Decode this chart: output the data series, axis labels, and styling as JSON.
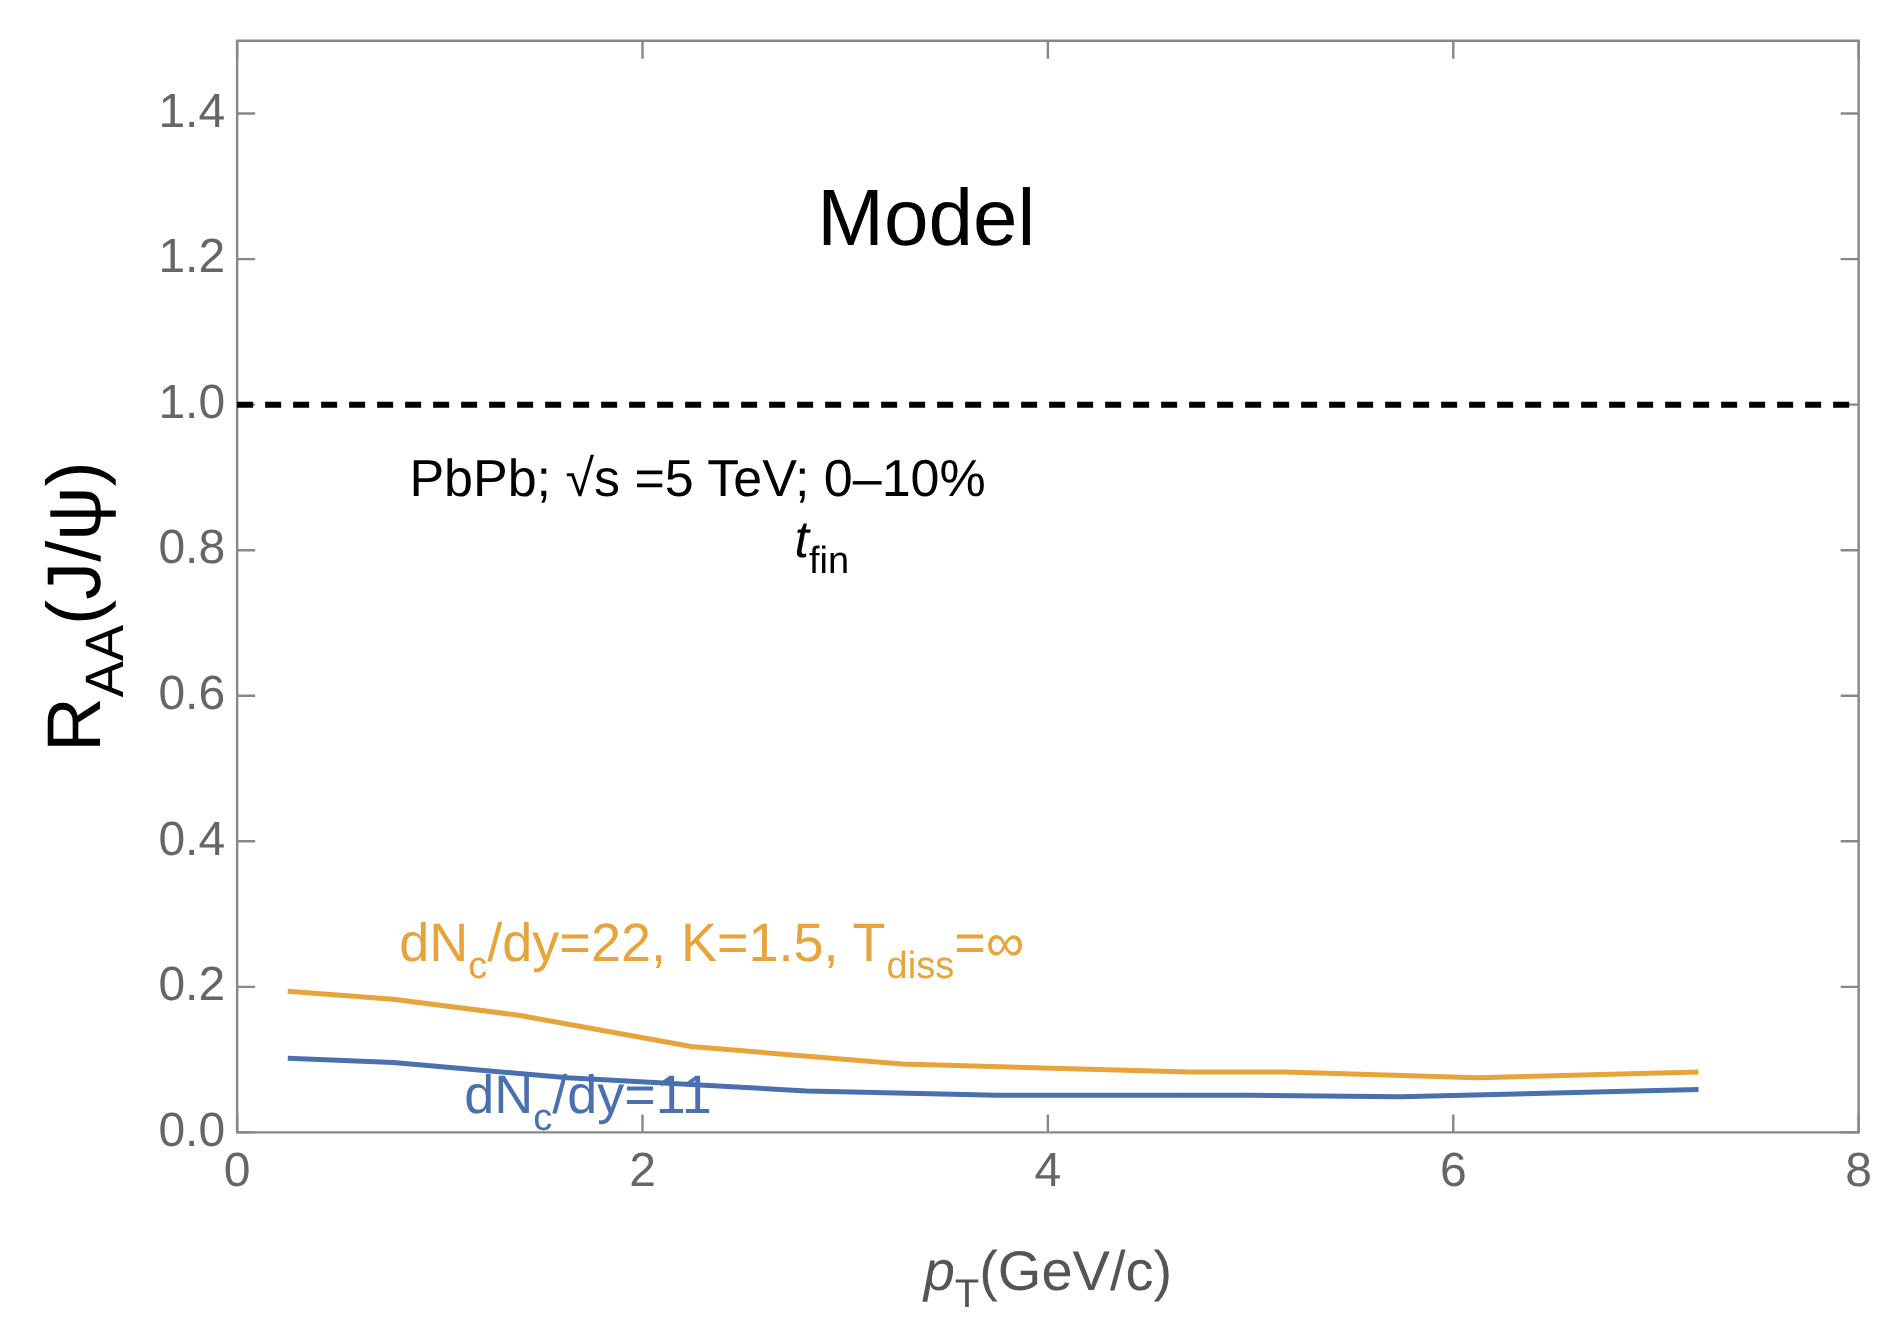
{
  "chart_data": {
    "type": "line",
    "title": "Model",
    "xlabel": "p$_{T}$(GeV/c)",
    "ylabel": "R$_{AA}$(J/ψ)",
    "annotations": [
      "PbPb; √s =5 TeV; 0–10%",
      "t$_{fin}$"
    ],
    "series": [
      {
        "name": "dN$_{c}$/dy=22, K=1.5, T$_{diss}$=∞",
        "color": "#e8a33a",
        "x": [
          0.25,
          0.77,
          1.39,
          2.24,
          3.28,
          4.7,
          5.17,
          6.12,
          7.21
        ],
        "values": [
          0.194,
          0.183,
          0.161,
          0.118,
          0.094,
          0.083,
          0.083,
          0.075,
          0.083
        ]
      },
      {
        "name": "dN$_{c}$/dy=11",
        "color": "#4a70b0",
        "x": [
          0.25,
          0.77,
          1.63,
          2.81,
          3.75,
          5.0,
          5.74,
          7.21
        ],
        "values": [
          0.102,
          0.096,
          0.075,
          0.057,
          0.051,
          0.051,
          0.049,
          0.059
        ]
      }
    ],
    "ref_lines": [
      {
        "axis": "y",
        "value": 1.0,
        "color": "#000000",
        "line_style": "dashed"
      }
    ],
    "xlim": [
      0,
      8
    ],
    "xticks": [
      0,
      2,
      4,
      6,
      8
    ],
    "ylim": [
      0,
      1.5
    ],
    "yticks": [
      {
        "value": 0,
        "label": "0.0"
      },
      0.2,
      0.4,
      0.6,
      0.8,
      {
        "value": 1,
        "label": "1.0"
      },
      1.2,
      1.4
    ],
    "grid": false,
    "legend": false,
    "marker": "none",
    "line_style": "solid"
  }
}
